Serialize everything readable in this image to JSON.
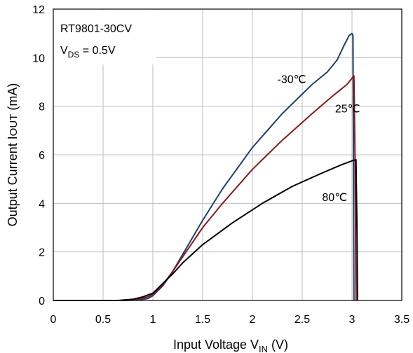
{
  "chart_data": {
    "type": "line",
    "title": "",
    "xlabel": {
      "main": "Input Voltage V",
      "sub": "IN",
      "tail": " (V)"
    },
    "ylabel": {
      "main": "Output Current I",
      "sub": "OUT",
      "tail": " (mA)"
    },
    "xlim": [
      0,
      3.5
    ],
    "ylim": [
      0,
      12
    ],
    "x_ticks": [
      0,
      0.5,
      1,
      1.5,
      2,
      2.5,
      3,
      3.5
    ],
    "x_tick_labels": [
      "0",
      "0.5",
      "1",
      "1.5",
      "2",
      "2.5",
      "3",
      "3.5"
    ],
    "y_ticks": [
      0,
      2,
      4,
      6,
      8,
      10,
      12
    ],
    "y_tick_labels": [
      "0",
      "2",
      "4",
      "6",
      "8",
      "10",
      "12"
    ],
    "grid": true,
    "legend_box": {
      "line1": "RT9801-30CV",
      "line2_main": "V",
      "line2_sub": "DS",
      "line2_tail": " = 0.5V"
    },
    "series": [
      {
        "name": "-30℃",
        "color": "#1f3f6e",
        "x": [
          0,
          0.7,
          0.85,
          0.95,
          1.0,
          1.1,
          1.2,
          1.3,
          1.5,
          1.7,
          2.0,
          2.3,
          2.6,
          2.75,
          2.85,
          2.92,
          2.97,
          3.0,
          3.01,
          3.015,
          3.02
        ],
        "y": [
          0,
          0,
          0.02,
          0.08,
          0.2,
          0.6,
          1.2,
          1.9,
          3.3,
          4.6,
          6.3,
          7.7,
          8.9,
          9.4,
          9.9,
          10.5,
          10.9,
          11.0,
          10.9,
          6.0,
          0
        ]
      },
      {
        "name": "25℃",
        "color": "#8b1a1a",
        "x": [
          0,
          0.7,
          0.85,
          0.95,
          1.0,
          1.1,
          1.2,
          1.3,
          1.5,
          1.7,
          2.0,
          2.3,
          2.6,
          2.8,
          2.95,
          3.02,
          3.03,
          3.04
        ],
        "y": [
          0,
          0,
          0.05,
          0.15,
          0.25,
          0.65,
          1.2,
          1.8,
          3.0,
          4.0,
          5.4,
          6.6,
          7.7,
          8.4,
          8.9,
          9.25,
          6.0,
          0
        ]
      },
      {
        "name": "80℃",
        "color": "#000000",
        "x": [
          0,
          0.65,
          0.8,
          0.9,
          1.0,
          1.1,
          1.2,
          1.3,
          1.5,
          1.8,
          2.1,
          2.4,
          2.7,
          2.9,
          3.0,
          3.04,
          3.05,
          3.055
        ],
        "y": [
          0,
          0,
          0.05,
          0.15,
          0.3,
          0.7,
          1.1,
          1.55,
          2.3,
          3.2,
          4.0,
          4.7,
          5.25,
          5.6,
          5.75,
          5.8,
          3.0,
          0
        ]
      }
    ],
    "annotations": [
      {
        "text": "-30℃",
        "x": 2.25,
        "y": 8.95
      },
      {
        "text": "25℃",
        "x": 2.83,
        "y": 7.75
      },
      {
        "text": "80℃",
        "x": 2.7,
        "y": 4.1
      }
    ]
  }
}
